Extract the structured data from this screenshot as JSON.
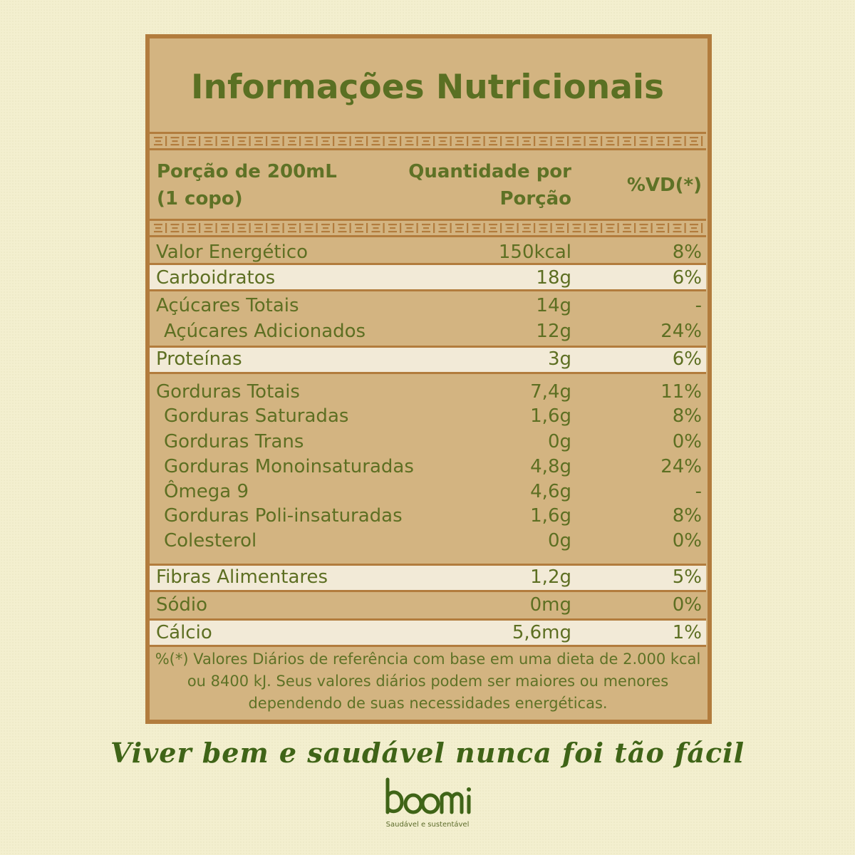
{
  "title": "Informações Nutricionais",
  "header": {
    "portion_line1": "Porção de 200mL",
    "portion_line2": "(1 copo)",
    "qty_line1": "Quantidade por",
    "qty_line2": "Porção",
    "vd": "%VD(*)"
  },
  "rows": [
    {
      "label": "Valor Energético",
      "qty": "150kcal",
      "vd": "8%"
    },
    {
      "label": "Carboidratos",
      "qty": "18g",
      "vd": "6%"
    },
    {
      "label": "Açúcares Totais",
      "qty": "14g",
      "vd": "-"
    },
    {
      "label": "Açúcares Adicionados",
      "qty": "12g",
      "vd": "24%"
    },
    {
      "label": "Proteínas",
      "qty": "3g",
      "vd": "6%"
    },
    {
      "label": "Gorduras Totais",
      "qty": "7,4g",
      "vd": "11%"
    },
    {
      "label": "Gorduras Saturadas",
      "qty": "1,6g",
      "vd": "8%"
    },
    {
      "label": "Gorduras Trans",
      "qty": "0g",
      "vd": "0%"
    },
    {
      "label": "Gorduras Monoinsaturadas",
      "qty": "4,8g",
      "vd": "24%"
    },
    {
      "label": "Ômega 9",
      "qty": "4,6g",
      "vd": "-"
    },
    {
      "label": "Gorduras Poli-insaturadas",
      "qty": "1,6g",
      "vd": "8%"
    },
    {
      "label": "Colesterol",
      "qty": "0g",
      "vd": "0%"
    },
    {
      "label": "Fibras Alimentares",
      "qty": "1,2g",
      "vd": "5%"
    },
    {
      "label": "Sódio",
      "qty": "0mg",
      "vd": "0%"
    },
    {
      "label": "Cálcio",
      "qty": "5,6mg",
      "vd": "1%"
    }
  ],
  "footnote": {
    "line1": "%(*) Valores Diários de referência com base em uma dieta de 2.000 kcal",
    "line2": "ou 8400 kJ. Seus valores diários podem ser maiores ou menores",
    "line3": "dependendo de suas necessidades energéticas."
  },
  "slogan": "Viver bem e saudável nunca foi tão fácil",
  "brand": {
    "name": "boomi",
    "tagline": "Saudável e sustentável"
  },
  "colors": {
    "background": "#f3efcf",
    "panel": "#d3b481",
    "border": "#b27c3d",
    "text_green": "#5d6f22",
    "light_row": "#f2ead7"
  }
}
